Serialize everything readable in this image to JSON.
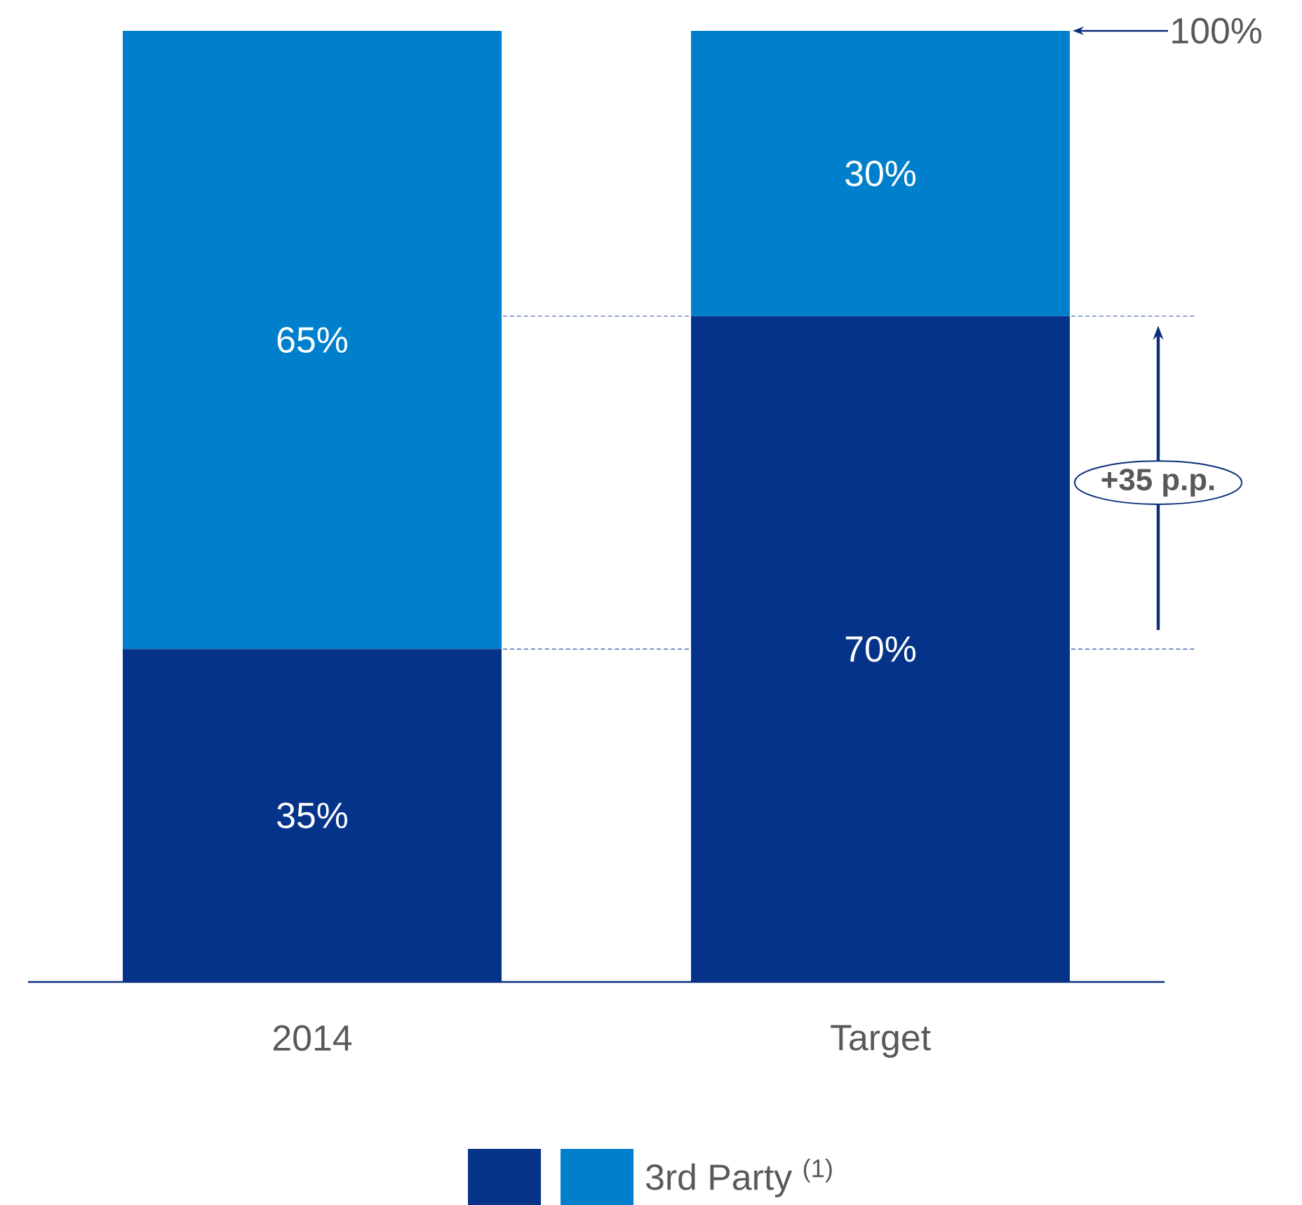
{
  "chart_data": {
    "type": "bar",
    "stacked": true,
    "categories": [
      "2014",
      "Target"
    ],
    "series": [
      {
        "color": "#06338a",
        "values": [
          35,
          70
        ],
        "value_labels": [
          "35%",
          "70%"
        ]
      },
      {
        "name": "3rd Party $^{(1)}$",
        "color": "#0080cc",
        "values": [
          65,
          30
        ],
        "value_labels": [
          "65%",
          "30%"
        ]
      }
    ],
    "ref_lines": [
      {
        "axis": "y",
        "value": 35,
        "color": "#2f4f9f",
        "line_style": "dashed"
      },
      {
        "axis": "y",
        "value": 70,
        "color": "#2f4f9f",
        "line_style": "dashed"
      }
    ],
    "annotations": [
      "100%",
      "+35 p.p."
    ],
    "legend": "bottom"
  }
}
